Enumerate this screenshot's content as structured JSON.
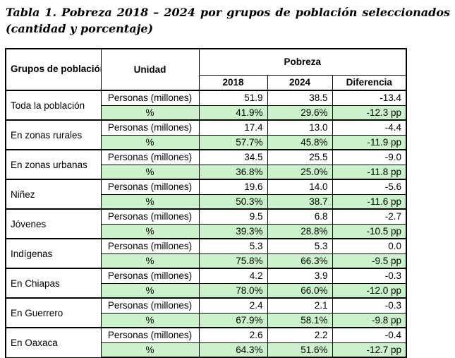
{
  "title": "Tabla 1. Pobreza 2018 – 2024 por grupos de población seleccionados (cantidad y porcentaje)",
  "table": {
    "headers": {
      "group": "Grupos de población",
      "unit": "Unidad",
      "span": "Pobreza",
      "years": [
        "2018",
        "2024",
        "Diferencia"
      ]
    },
    "unit_labels": {
      "count": "Personas (millones)",
      "percent": "%"
    },
    "groups": [
      {
        "label": "Toda la población",
        "count": [
          "51.9",
          "38.5",
          "-13.4"
        ],
        "percent": [
          "41.9%",
          "29.6%",
          "-12.3 pp"
        ]
      },
      {
        "label": "En zonas rurales",
        "count": [
          "17.4",
          "13.0",
          "-4.4"
        ],
        "percent": [
          "57.7%",
          "45.8%",
          "-11.9 pp"
        ]
      },
      {
        "label": "En zonas urbanas",
        "count": [
          "34.5",
          "25.5",
          "-9.0"
        ],
        "percent": [
          "36.8%",
          "25.0%",
          "-11.8 pp"
        ]
      },
      {
        "label": "Niñez",
        "count": [
          "19.6",
          "14.0",
          "-5.6"
        ],
        "percent": [
          "50.3%",
          "38.7",
          "-11.6 pp"
        ]
      },
      {
        "label": "Jóvenes",
        "count": [
          "9.5",
          "6.8",
          "-2.7"
        ],
        "percent": [
          "39.3%",
          "28.8%",
          "-10.5 pp"
        ]
      },
      {
        "label": "Indígenas",
        "count": [
          "5.3",
          "5.3",
          "0.0"
        ],
        "percent": [
          "75.8%",
          "66.3%",
          "-9.5 pp"
        ]
      },
      {
        "label": "En Chiapas",
        "count": [
          "4.2",
          "3.9",
          "-0.3"
        ],
        "percent": [
          "78.0%",
          "66.0%",
          "-12.0 pp"
        ]
      },
      {
        "label": "En Guerrero",
        "count": [
          "2.4",
          "2.1",
          "-0.3"
        ],
        "percent": [
          "67.9%",
          "58.1%",
          "-9.8 pp"
        ]
      },
      {
        "label": "En Oaxaca",
        "count": [
          "2.6",
          "2.2",
          "-0.4"
        ],
        "percent": [
          "64.3%",
          "51.6%",
          "-12.7 pp"
        ]
      }
    ],
    "colors": {
      "percent_row_bg": "#ccf2cc",
      "border": "#000000",
      "text": "#000000",
      "background": "#ffffff"
    }
  }
}
